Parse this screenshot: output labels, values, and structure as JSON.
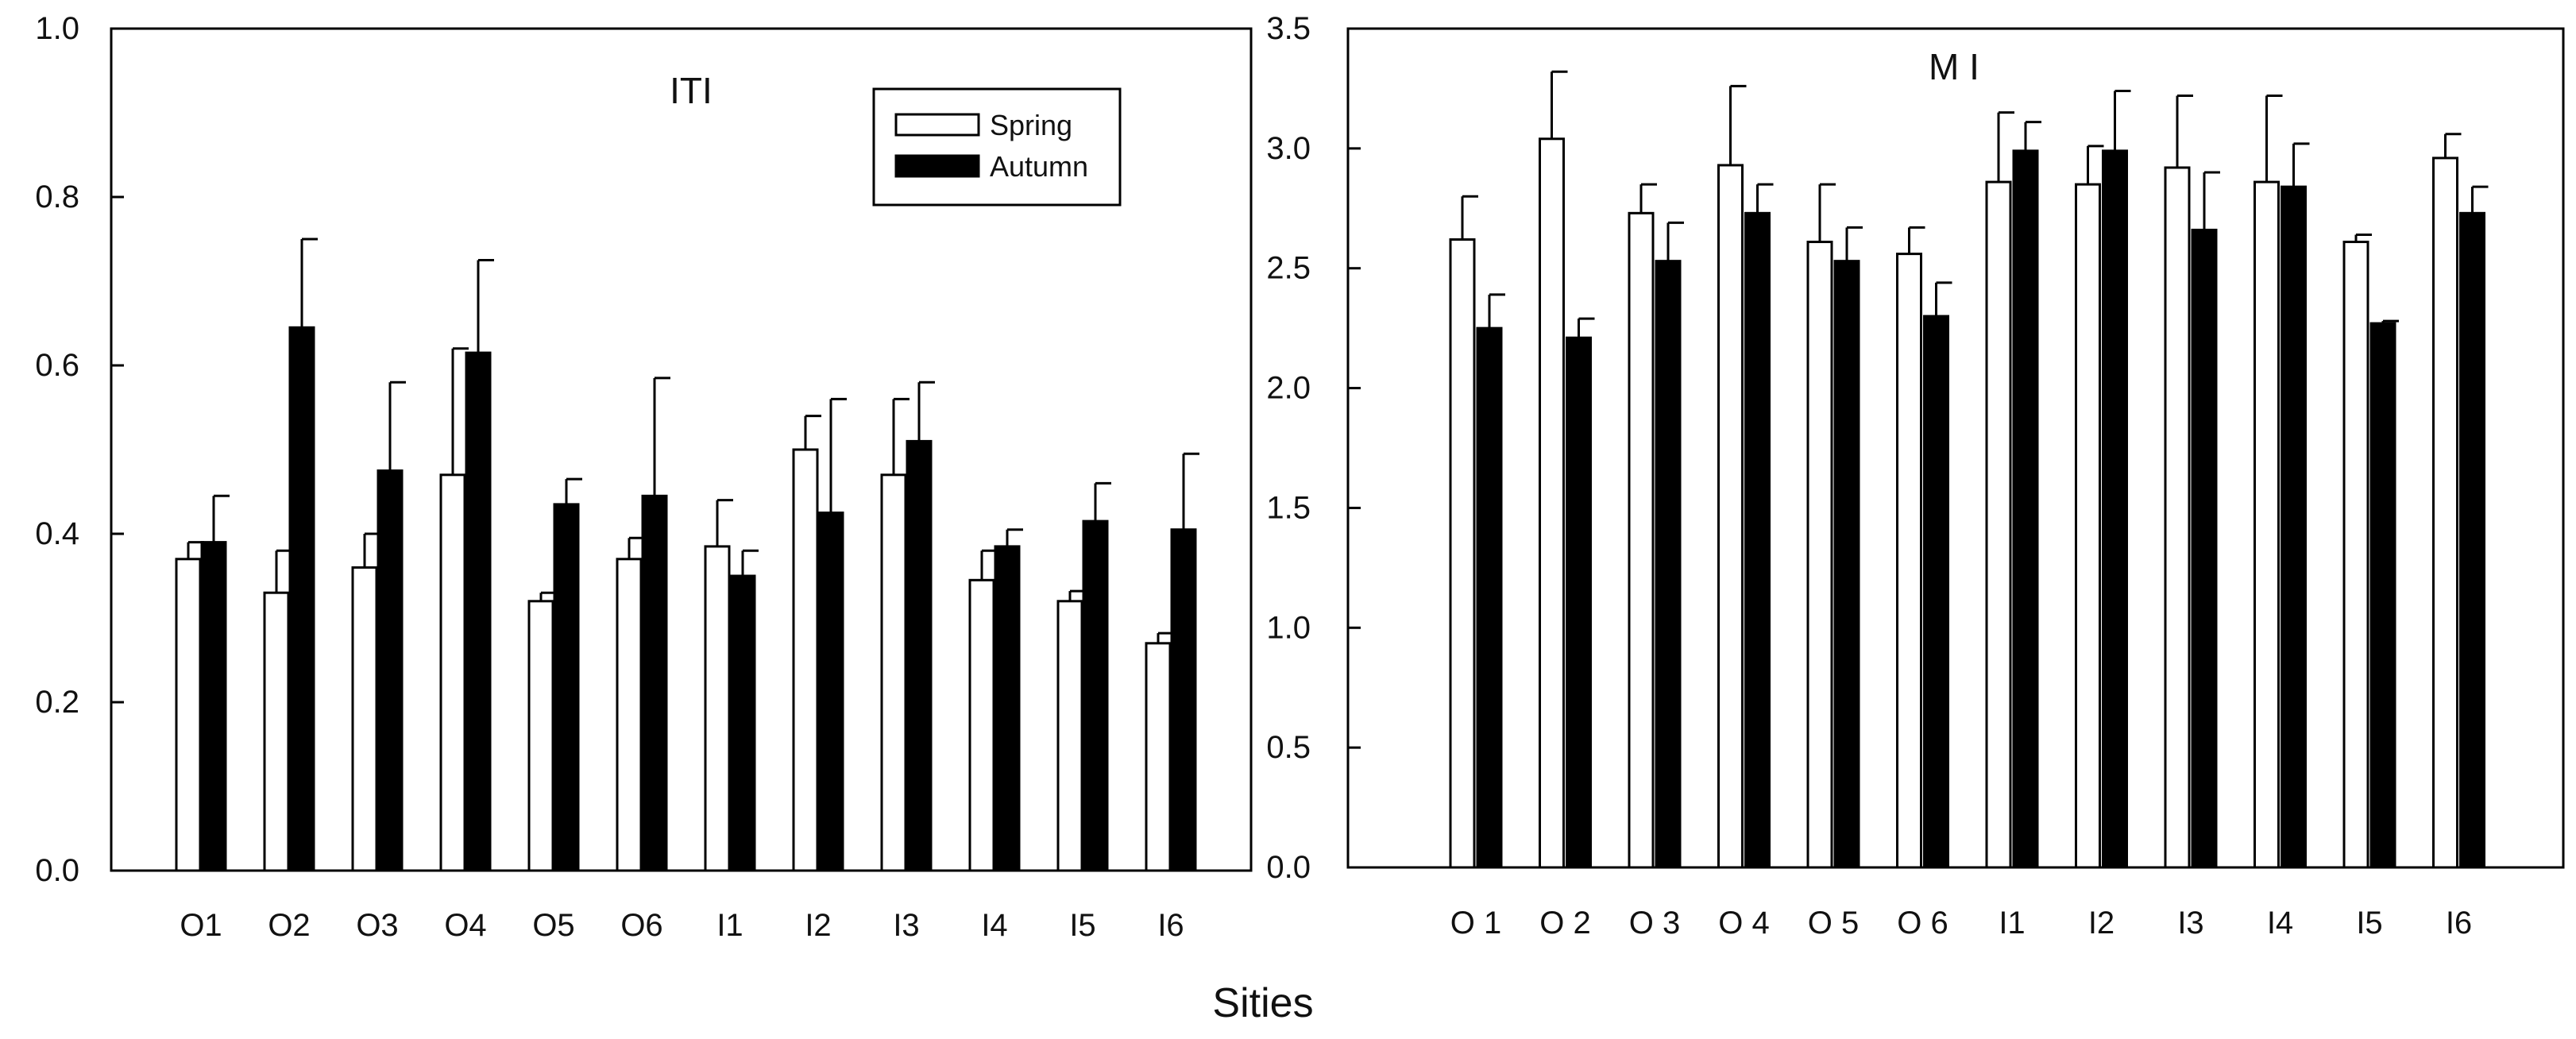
{
  "figure": {
    "xlabel_shared": "Sities"
  },
  "legend": {
    "spring_label": "Spring",
    "autumn_label": "Autumn"
  },
  "chart_data": [
    {
      "type": "bar",
      "title": "ITI",
      "xlabel": "",
      "ylabel": "",
      "ylim": [
        0,
        1.0
      ],
      "yticks": [
        "0.0",
        "0.2",
        "0.4",
        "0.6",
        "0.8",
        "1.0"
      ],
      "categories": [
        "O1",
        "O2",
        "O3",
        "O4",
        "O5",
        "O6",
        "I1",
        "I2",
        "I3",
        "I4",
        "I5",
        "I6"
      ],
      "series": [
        {
          "name": "Spring",
          "values": [
            0.37,
            0.33,
            0.36,
            0.47,
            0.32,
            0.37,
            0.385,
            0.5,
            0.47,
            0.345,
            0.32,
            0.27
          ],
          "errors": [
            0.02,
            0.05,
            0.04,
            0.15,
            0.01,
            0.025,
            0.055,
            0.04,
            0.09,
            0.035,
            0.012,
            0.012
          ]
        },
        {
          "name": "Autumn",
          "values": [
            0.39,
            0.645,
            0.475,
            0.615,
            0.435,
            0.445,
            0.35,
            0.425,
            0.51,
            0.385,
            0.415,
            0.405
          ],
          "errors": [
            0.055,
            0.105,
            0.105,
            0.11,
            0.03,
            0.14,
            0.03,
            0.135,
            0.07,
            0.02,
            0.045,
            0.09
          ]
        }
      ],
      "legend_position": "top-right"
    },
    {
      "type": "bar",
      "title": "M I",
      "xlabel": "",
      "ylabel": "",
      "ylim": [
        0,
        3.5
      ],
      "yticks": [
        "0.0",
        "0.5",
        "1.0",
        "1.5",
        "2.0",
        "2.5",
        "3.0",
        "3.5"
      ],
      "categories": [
        "O 1",
        "O 2",
        "O 3",
        "O 4",
        "O 5",
        "O 6",
        "I1",
        "I2",
        "I3",
        "I4",
        "I5",
        "I6"
      ],
      "series": [
        {
          "name": "Spring",
          "values": [
            2.62,
            3.04,
            2.73,
            2.93,
            2.61,
            2.56,
            2.86,
            2.85,
            2.92,
            2.86,
            2.61,
            2.96
          ],
          "errors": [
            0.18,
            0.28,
            0.12,
            0.33,
            0.24,
            0.11,
            0.29,
            0.16,
            0.3,
            0.36,
            0.03,
            0.1
          ]
        },
        {
          "name": "Autumn",
          "values": [
            2.25,
            2.21,
            2.53,
            2.73,
            2.53,
            2.3,
            2.99,
            2.99,
            2.66,
            2.84,
            2.27,
            2.73
          ],
          "errors": [
            0.14,
            0.08,
            0.16,
            0.12,
            0.14,
            0.14,
            0.12,
            0.25,
            0.24,
            0.18,
            0.01,
            0.11
          ]
        }
      ]
    }
  ]
}
